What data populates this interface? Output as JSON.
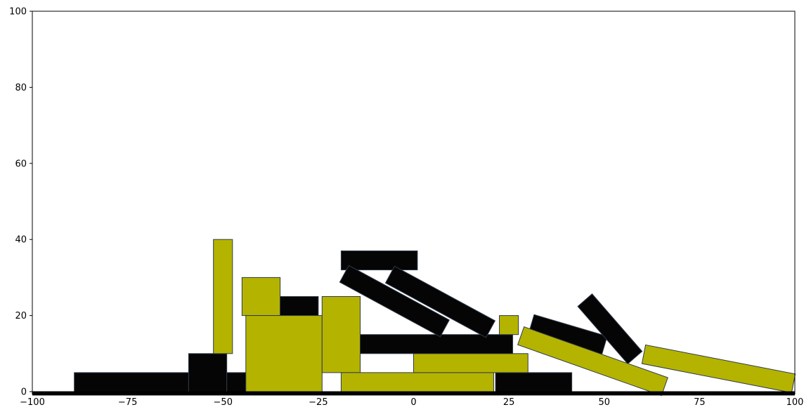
{
  "chart_data": {
    "type": "rectangles",
    "title": "",
    "xlabel": "",
    "ylabel": "",
    "xlim": [
      -100,
      100
    ],
    "ylim": [
      0,
      100
    ],
    "x_ticks": [
      -100,
      -75,
      -50,
      -25,
      0,
      25,
      50,
      75,
      100
    ],
    "y_ticks": [
      0,
      20,
      40,
      60,
      80,
      100
    ],
    "grid": false,
    "colors": {
      "black": "#050505",
      "olive": "#b4b400",
      "edge": "#2e3a4a"
    },
    "ground": {
      "x_from": -100,
      "x_to": 100,
      "y": -0.5,
      "thickness": 1
    },
    "blocks": [
      {
        "name": "black-block-1",
        "color": "black",
        "cx": -74,
        "cy": 2.5,
        "w": 30,
        "h": 5,
        "angle": 0
      },
      {
        "name": "black-block-2",
        "color": "black",
        "cx": -54,
        "cy": 5,
        "w": 10,
        "h": 10,
        "angle": 0
      },
      {
        "name": "black-block-3",
        "color": "black",
        "cx": -46.5,
        "cy": 2.5,
        "w": 5,
        "h": 5,
        "angle": 0
      },
      {
        "name": "olive-block-1",
        "color": "olive",
        "cx": -50,
        "cy": 25,
        "w": 5,
        "h": 30,
        "angle": 0
      },
      {
        "name": "olive-block-2",
        "color": "olive",
        "cx": -40,
        "cy": 25,
        "w": 10,
        "h": 10,
        "angle": 0
      },
      {
        "name": "black-block-4",
        "color": "black",
        "cx": -30,
        "cy": 22.5,
        "w": 10,
        "h": 5,
        "angle": 0
      },
      {
        "name": "olive-block-3",
        "color": "olive",
        "cx": -34,
        "cy": 10,
        "w": 20,
        "h": 20,
        "angle": 0
      },
      {
        "name": "olive-block-4",
        "color": "olive",
        "cx": -19,
        "cy": 15,
        "w": 10,
        "h": 20,
        "angle": 0
      },
      {
        "name": "olive-block-5",
        "color": "olive",
        "cx": 1,
        "cy": 2.5,
        "w": 40,
        "h": 5,
        "angle": 0
      },
      {
        "name": "black-block-5",
        "color": "black",
        "cx": 31.5,
        "cy": 2.5,
        "w": 20,
        "h": 5,
        "angle": 0
      },
      {
        "name": "olive-block-6",
        "color": "olive",
        "cx": 15,
        "cy": 7.5,
        "w": 30,
        "h": 5,
        "angle": 0
      },
      {
        "name": "black-block-6",
        "color": "black",
        "cx": 6,
        "cy": 12.5,
        "w": 40,
        "h": 5,
        "angle": 0
      },
      {
        "name": "olive-block-7",
        "color": "olive",
        "cx": 25,
        "cy": 17.5,
        "w": 5,
        "h": 5,
        "angle": 0
      },
      {
        "name": "black-block-7",
        "color": "black",
        "cx": -9,
        "cy": 34.5,
        "w": 20,
        "h": 5,
        "angle": 0
      },
      {
        "name": "black-block-8",
        "color": "black",
        "cx": -5,
        "cy": 23.8,
        "w": 30,
        "h": 5,
        "angle": -28.5
      },
      {
        "name": "black-block-9",
        "color": "black",
        "cx": 7,
        "cy": 23.6,
        "w": 30,
        "h": 5,
        "angle": -28.5
      },
      {
        "name": "black-block-10",
        "color": "black",
        "cx": 40.5,
        "cy": 15,
        "w": 20,
        "h": 5,
        "angle": -16.5
      },
      {
        "name": "black-block-11",
        "color": "black",
        "cx": 51.5,
        "cy": 16.5,
        "w": 20,
        "h": 5,
        "angle": -49
      },
      {
        "name": "olive-block-8",
        "color": "olive",
        "cx": 47,
        "cy": 8,
        "w": 40,
        "h": 5,
        "angle": -19.5
      },
      {
        "name": "olive-block-9",
        "color": "olive",
        "cx": 80,
        "cy": 6,
        "w": 40,
        "h": 5,
        "angle": -11
      }
    ]
  }
}
